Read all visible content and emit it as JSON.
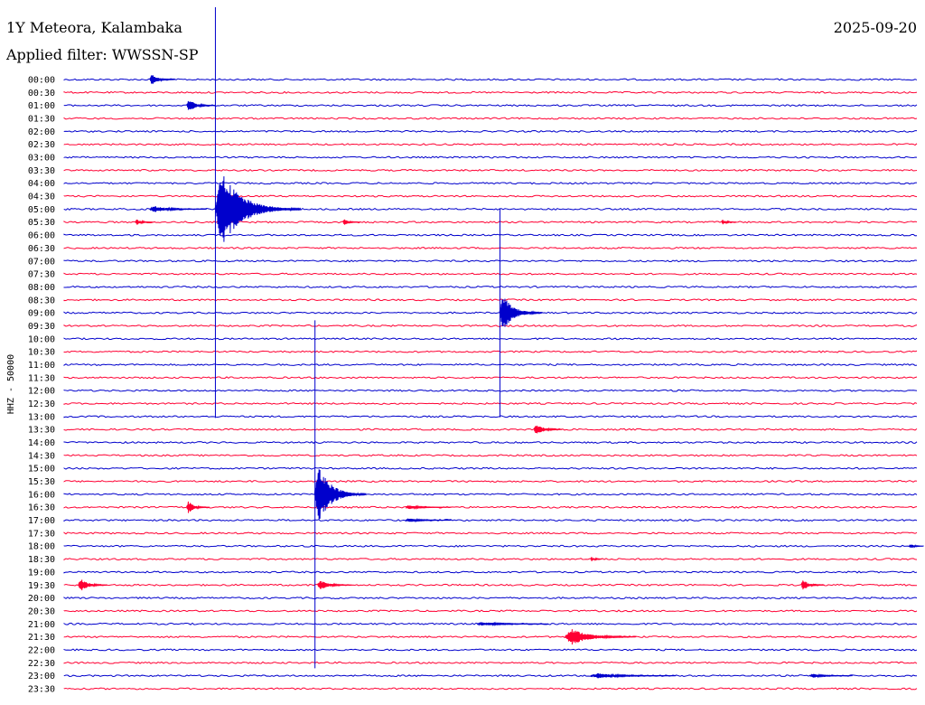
{
  "header": {
    "station": "1Y Meteora, Kalambaka",
    "filter": "Applied filter: WWSSN-SP",
    "date": "2025-09-20"
  },
  "chart_data": {
    "type": "helicorder",
    "ylabel": "HHZ - 50000",
    "row_minutes": 30,
    "row_times": [
      "00:00",
      "00:30",
      "01:00",
      "01:30",
      "02:00",
      "02:30",
      "03:00",
      "03:30",
      "04:00",
      "04:30",
      "05:00",
      "05:30",
      "06:00",
      "06:30",
      "07:00",
      "07:30",
      "08:00",
      "08:30",
      "09:00",
      "09:30",
      "10:00",
      "10:30",
      "11:00",
      "11:30",
      "12:00",
      "12:30",
      "13:00",
      "13:30",
      "14:00",
      "14:30",
      "15:00",
      "15:30",
      "16:00",
      "16:30",
      "17:00",
      "17:30",
      "18:00",
      "18:30",
      "19:00",
      "19:30",
      "20:00",
      "20:30",
      "21:00",
      "21:30",
      "22:00",
      "22:30",
      "23:00",
      "23:30"
    ],
    "colors": {
      "even_rows": "#0000cc",
      "odd_rows": "#ff0033"
    },
    "events": [
      {
        "row": 0,
        "minute": 3.0,
        "amplitude": 0.9,
        "duration_min": 0.9
      },
      {
        "row": 2,
        "minute": 4.3,
        "amplitude": 1.0,
        "duration_min": 1.0
      },
      {
        "row": 10,
        "minute": 5.3,
        "amplitude": 6.0,
        "duration_min": 3.0
      },
      {
        "row": 10,
        "minute": 3.0,
        "amplitude": 0.5,
        "duration_min": 2.0
      },
      {
        "row": 10,
        "minute": 6.5,
        "amplitude": 0.5,
        "duration_min": 0.8
      },
      {
        "row": 11,
        "minute": 2.5,
        "amplitude": 0.5,
        "duration_min": 0.6
      },
      {
        "row": 11,
        "minute": 9.8,
        "amplitude": 0.5,
        "duration_min": 0.6
      },
      {
        "row": 11,
        "minute": 23.1,
        "amplitude": 0.4,
        "duration_min": 0.5
      },
      {
        "row": 18,
        "minute": 15.3,
        "amplitude": 3.0,
        "duration_min": 1.5
      },
      {
        "row": 27,
        "minute": 16.5,
        "amplitude": 1.0,
        "duration_min": 1.0
      },
      {
        "row": 32,
        "minute": 8.8,
        "amplitude": 5.0,
        "duration_min": 1.8
      },
      {
        "row": 33,
        "minute": 4.3,
        "amplitude": 1.0,
        "duration_min": 0.8
      },
      {
        "row": 33,
        "minute": 12.0,
        "amplitude": 0.3,
        "duration_min": 1.6
      },
      {
        "row": 34,
        "minute": 12.0,
        "amplitude": 0.3,
        "duration_min": 1.6
      },
      {
        "row": 36,
        "minute": 29.7,
        "amplitude": 0.4,
        "duration_min": 0.5
      },
      {
        "row": 37,
        "minute": 18.5,
        "amplitude": 0.4,
        "duration_min": 0.4
      },
      {
        "row": 39,
        "minute": 0.5,
        "amplitude": 1.2,
        "duration_min": 1.0
      },
      {
        "row": 39,
        "minute": 8.9,
        "amplitude": 0.8,
        "duration_min": 1.2
      },
      {
        "row": 39,
        "minute": 25.9,
        "amplitude": 0.9,
        "duration_min": 0.8
      },
      {
        "row": 42,
        "minute": 14.5,
        "amplitude": 0.3,
        "duration_min": 2.5
      },
      {
        "row": 43,
        "minute": 17.6,
        "amplitude": 1.4,
        "duration_min": 2.5
      },
      {
        "row": 46,
        "minute": 18.5,
        "amplitude": 0.4,
        "duration_min": 3.0
      },
      {
        "row": 46,
        "minute": 26.2,
        "amplitude": 0.3,
        "duration_min": 1.5
      }
    ]
  }
}
